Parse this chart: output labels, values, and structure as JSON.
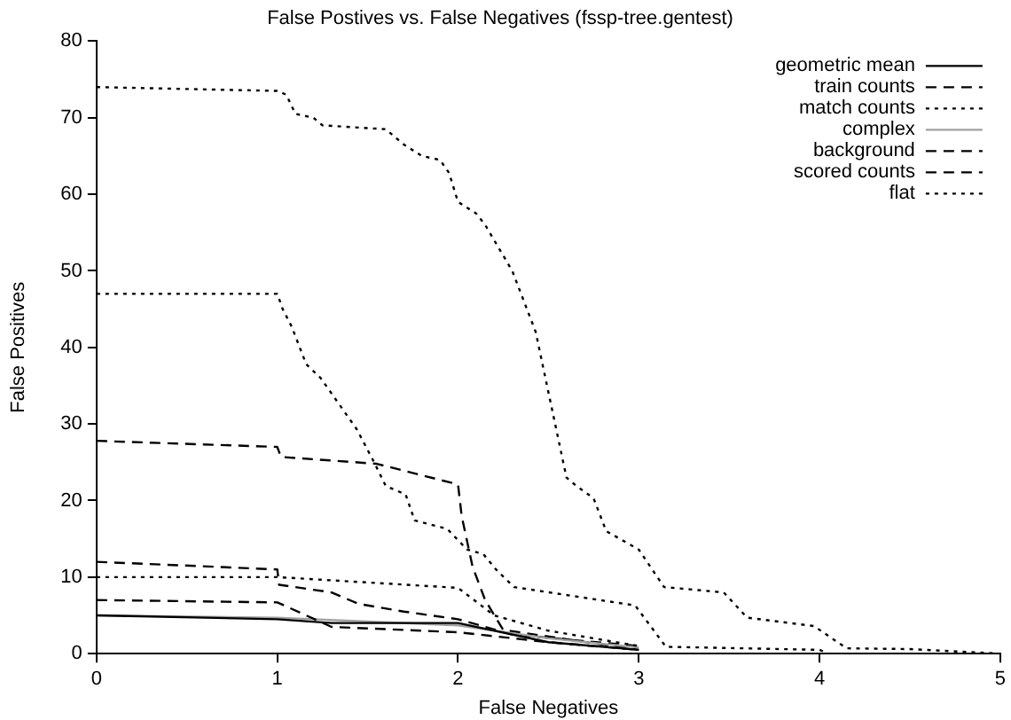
{
  "chart_data": {
    "type": "line",
    "title": "False Postives vs. False Negatives (fssp-tree.gentest)",
    "xlabel": "False Negatives",
    "ylabel": "False Positives",
    "xlim": [
      0,
      5
    ],
    "ylim": [
      0,
      80
    ],
    "xticks": [
      0,
      1,
      2,
      3,
      4,
      5
    ],
    "yticks": [
      0,
      10,
      20,
      30,
      40,
      50,
      60,
      70,
      80
    ],
    "grid": false,
    "legend": "top right",
    "marker": "none",
    "series": [
      {
        "name": "geometric mean",
        "color": "#000000",
        "line_style": "solid",
        "x": [
          0,
          1,
          1.3,
          2,
          2.5,
          3
        ],
        "values": [
          5,
          4.5,
          4,
          4,
          1.5,
          0.5
        ]
      },
      {
        "name": "train counts",
        "color": "#000000",
        "line_style": "dashed",
        "x": [
          0,
          1,
          1.3,
          2,
          2.5,
          3
        ],
        "values": [
          7,
          6.7,
          3.5,
          2.8,
          1.5,
          0.5
        ]
      },
      {
        "name": "match counts",
        "color": "#000000",
        "line_style": "dotted",
        "x": [
          0,
          1,
          2,
          2.2,
          2.5,
          3
        ],
        "values": [
          10,
          10,
          8.6,
          5,
          3,
          1
        ]
      },
      {
        "name": "complex",
        "color": "#a0a0a0",
        "line_style": "solid",
        "x": [
          0,
          1,
          2,
          2.5,
          3
        ],
        "values": [
          5,
          4.7,
          3.7,
          2,
          0.8
        ]
      },
      {
        "name": "background",
        "color": "#000000",
        "line_style": "dashed",
        "x": [
          0,
          1,
          1.02,
          1.55,
          2,
          2.02,
          2.08,
          2.15,
          2.25,
          3
        ],
        "values": [
          27.8,
          27,
          25.7,
          24.8,
          22.1,
          18,
          11.4,
          7,
          3.1,
          0.5
        ]
      },
      {
        "name": "scored counts",
        "color": "#000000",
        "line_style": "dashed",
        "x": [
          0,
          1,
          1.01,
          1.3,
          1.45,
          1.7,
          2,
          2.3,
          3
        ],
        "values": [
          12,
          11,
          9,
          8,
          6.5,
          5.5,
          4.5,
          2.5,
          1
        ]
      },
      {
        "color": "#000000",
        "line_style": "dotted",
        "x": [
          0,
          1,
          1.03,
          1.08,
          1.16,
          1.24,
          1.44,
          1.54,
          1.6,
          1.71,
          1.76,
          1.94,
          2.05,
          2.14,
          2.21,
          2.31,
          2.98,
          3.15,
          4,
          4.05
        ],
        "values": [
          47,
          47,
          45,
          42.7,
          37.8,
          36,
          29.3,
          24.8,
          21.9,
          20.8,
          17.4,
          16.3,
          13.6,
          13,
          11,
          8.7,
          6.3,
          0.9,
          0.5,
          0
        ]
      },
      {
        "name": "flat",
        "color": "#000000",
        "line_style": "dotted",
        "x": [
          0,
          1,
          1.05,
          1.1,
          1.2,
          1.25,
          1.6,
          1.7,
          1.8,
          1.9,
          1.95,
          2,
          2.1,
          2.15,
          2.3,
          2.43,
          2.47,
          2.6,
          2.65,
          2.75,
          2.82,
          3,
          3.14,
          3.47,
          3.6,
          3.97,
          4.15,
          4.5,
          5
        ],
        "values": [
          74,
          73.5,
          73,
          70.5,
          70,
          69,
          68.5,
          66.5,
          65,
          64.5,
          62.8,
          59,
          57.5,
          56,
          50,
          42,
          37.5,
          23,
          22,
          20.3,
          16,
          13.6,
          8.7,
          8,
          4.7,
          3.6,
          0.7,
          0.6,
          0
        ]
      }
    ]
  }
}
